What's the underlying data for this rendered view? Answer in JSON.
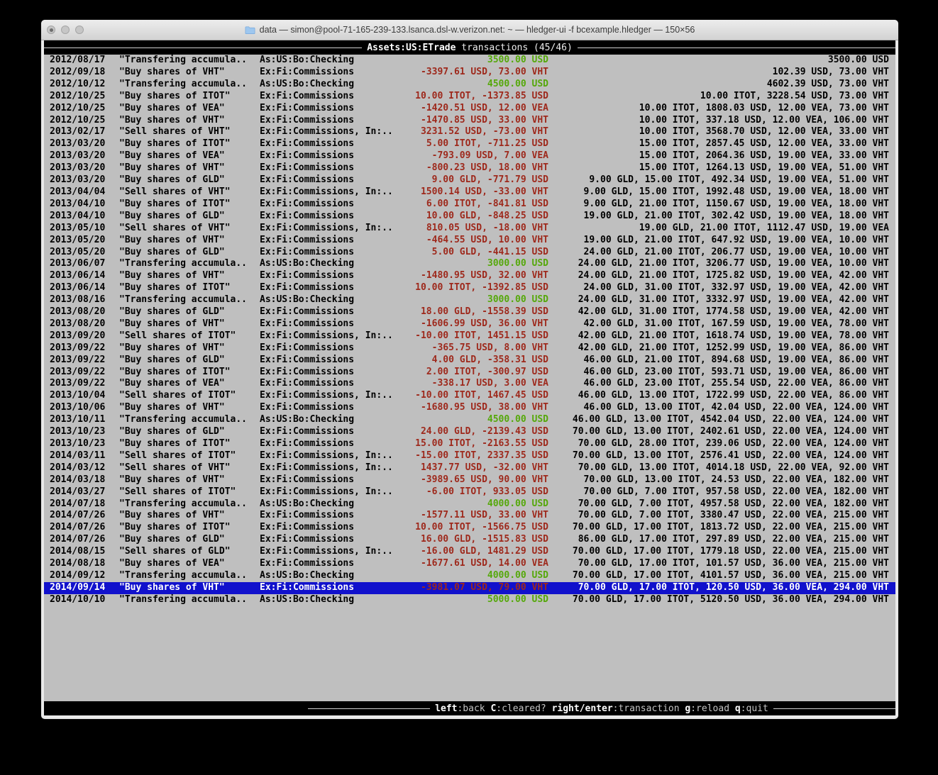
{
  "window": {
    "title": "data — simon@pool-71-165-239-133.lsanca.dsl-w.verizon.net: ~ — hledger-ui -f bcexample.hledger — 150×56",
    "traffic_lights": [
      "close",
      "minimize",
      "zoom"
    ]
  },
  "colors": {
    "terminal_bg": "#bfbfbf",
    "band_bg": "#000000",
    "green": "#55a80a",
    "red": "#9e291c",
    "selection_blue": "#1111cc"
  },
  "header": {
    "account": "Assets:US:ETrade",
    "suffix": " transactions (45/46)"
  },
  "footer": {
    "keys": [
      {
        "key": "left",
        "label": ":back"
      },
      {
        "key": "C",
        "label": ":cleared?"
      },
      {
        "key": "right/enter",
        "label": ":transaction"
      },
      {
        "key": "g",
        "label": ":reload"
      },
      {
        "key": "q",
        "label": ":quit"
      }
    ]
  },
  "transactions": [
    {
      "date": "2012/08/17",
      "desc": "\"Transfering accumula..",
      "account": "As:US:Bo:Checking",
      "amount": "3500.00 USD",
      "amount_color": "g",
      "balance": "3500.00 USD",
      "selected": false
    },
    {
      "date": "2012/09/18",
      "desc": "\"Buy shares of VHT\"",
      "account": "Ex:Fi:Commissions",
      "amount": "-3397.61 USD, 73.00 VHT",
      "amount_color": "r",
      "balance": "102.39 USD, 73.00 VHT",
      "selected": false
    },
    {
      "date": "2012/10/12",
      "desc": "\"Transfering accumula..",
      "account": "As:US:Bo:Checking",
      "amount": "4500.00 USD",
      "amount_color": "g",
      "balance": "4602.39 USD, 73.00 VHT",
      "selected": false
    },
    {
      "date": "2012/10/25",
      "desc": "\"Buy shares of ITOT\"",
      "account": "Ex:Fi:Commissions",
      "amount": "10.00 ITOT, -1373.85 USD",
      "amount_color": "r",
      "balance": "10.00 ITOT, 3228.54 USD, 73.00 VHT",
      "selected": false
    },
    {
      "date": "2012/10/25",
      "desc": "\"Buy shares of VEA\"",
      "account": "Ex:Fi:Commissions",
      "amount": "-1420.51 USD, 12.00 VEA",
      "amount_color": "r",
      "balance": "10.00 ITOT, 1808.03 USD, 12.00 VEA, 73.00 VHT",
      "selected": false
    },
    {
      "date": "2012/10/25",
      "desc": "\"Buy shares of VHT\"",
      "account": "Ex:Fi:Commissions",
      "amount": "-1470.85 USD, 33.00 VHT",
      "amount_color": "r",
      "balance": "10.00 ITOT, 337.18 USD, 12.00 VEA, 106.00 VHT",
      "selected": false
    },
    {
      "date": "2013/02/17",
      "desc": "\"Sell shares of VHT\"",
      "account": "Ex:Fi:Commissions, In:..",
      "amount": "3231.52 USD, -73.00 VHT",
      "amount_color": "r",
      "balance": "10.00 ITOT, 3568.70 USD, 12.00 VEA, 33.00 VHT",
      "selected": false
    },
    {
      "date": "2013/03/20",
      "desc": "\"Buy shares of ITOT\"",
      "account": "Ex:Fi:Commissions",
      "amount": "5.00 ITOT, -711.25 USD",
      "amount_color": "r",
      "balance": "15.00 ITOT, 2857.45 USD, 12.00 VEA, 33.00 VHT",
      "selected": false
    },
    {
      "date": "2013/03/20",
      "desc": "\"Buy shares of VEA\"",
      "account": "Ex:Fi:Commissions",
      "amount": "-793.09 USD, 7.00 VEA",
      "amount_color": "r",
      "balance": "15.00 ITOT, 2064.36 USD, 19.00 VEA, 33.00 VHT",
      "selected": false
    },
    {
      "date": "2013/03/20",
      "desc": "\"Buy shares of VHT\"",
      "account": "Ex:Fi:Commissions",
      "amount": "-800.23 USD, 18.00 VHT",
      "amount_color": "r",
      "balance": "15.00 ITOT, 1264.13 USD, 19.00 VEA, 51.00 VHT",
      "selected": false
    },
    {
      "date": "2013/03/20",
      "desc": "\"Buy shares of GLD\"",
      "account": "Ex:Fi:Commissions",
      "amount": "9.00 GLD, -771.79 USD",
      "amount_color": "r",
      "balance": "9.00 GLD, 15.00 ITOT, 492.34 USD, 19.00 VEA, 51.00 VHT",
      "selected": false
    },
    {
      "date": "2013/04/04",
      "desc": "\"Sell shares of VHT\"",
      "account": "Ex:Fi:Commissions, In:..",
      "amount": "1500.14 USD, -33.00 VHT",
      "amount_color": "r",
      "balance": "9.00 GLD, 15.00 ITOT, 1992.48 USD, 19.00 VEA, 18.00 VHT",
      "selected": false
    },
    {
      "date": "2013/04/10",
      "desc": "\"Buy shares of ITOT\"",
      "account": "Ex:Fi:Commissions",
      "amount": "6.00 ITOT, -841.81 USD",
      "amount_color": "r",
      "balance": "9.00 GLD, 21.00 ITOT, 1150.67 USD, 19.00 VEA, 18.00 VHT",
      "selected": false
    },
    {
      "date": "2013/04/10",
      "desc": "\"Buy shares of GLD\"",
      "account": "Ex:Fi:Commissions",
      "amount": "10.00 GLD, -848.25 USD",
      "amount_color": "r",
      "balance": "19.00 GLD, 21.00 ITOT, 302.42 USD, 19.00 VEA, 18.00 VHT",
      "selected": false
    },
    {
      "date": "2013/05/10",
      "desc": "\"Sell shares of VHT\"",
      "account": "Ex:Fi:Commissions, In:..",
      "amount": "810.05 USD, -18.00 VHT",
      "amount_color": "r",
      "balance": "19.00 GLD, 21.00 ITOT, 1112.47 USD, 19.00 VEA",
      "selected": false
    },
    {
      "date": "2013/05/20",
      "desc": "\"Buy shares of VHT\"",
      "account": "Ex:Fi:Commissions",
      "amount": "-464.55 USD, 10.00 VHT",
      "amount_color": "r",
      "balance": "19.00 GLD, 21.00 ITOT, 647.92 USD, 19.00 VEA, 10.00 VHT",
      "selected": false
    },
    {
      "date": "2013/05/20",
      "desc": "\"Buy shares of GLD\"",
      "account": "Ex:Fi:Commissions",
      "amount": "5.00 GLD, -441.15 USD",
      "amount_color": "r",
      "balance": "24.00 GLD, 21.00 ITOT, 206.77 USD, 19.00 VEA, 10.00 VHT",
      "selected": false
    },
    {
      "date": "2013/06/07",
      "desc": "\"Transfering accumula..",
      "account": "As:US:Bo:Checking",
      "amount": "3000.00 USD",
      "amount_color": "g",
      "balance": "24.00 GLD, 21.00 ITOT, 3206.77 USD, 19.00 VEA, 10.00 VHT",
      "selected": false
    },
    {
      "date": "2013/06/14",
      "desc": "\"Buy shares of VHT\"",
      "account": "Ex:Fi:Commissions",
      "amount": "-1480.95 USD, 32.00 VHT",
      "amount_color": "r",
      "balance": "24.00 GLD, 21.00 ITOT, 1725.82 USD, 19.00 VEA, 42.00 VHT",
      "selected": false
    },
    {
      "date": "2013/06/14",
      "desc": "\"Buy shares of ITOT\"",
      "account": "Ex:Fi:Commissions",
      "amount": "10.00 ITOT, -1392.85 USD",
      "amount_color": "r",
      "balance": "24.00 GLD, 31.00 ITOT, 332.97 USD, 19.00 VEA, 42.00 VHT",
      "selected": false
    },
    {
      "date": "2013/08/16",
      "desc": "\"Transfering accumula..",
      "account": "As:US:Bo:Checking",
      "amount": "3000.00 USD",
      "amount_color": "g",
      "balance": "24.00 GLD, 31.00 ITOT, 3332.97 USD, 19.00 VEA, 42.00 VHT",
      "selected": false
    },
    {
      "date": "2013/08/20",
      "desc": "\"Buy shares of GLD\"",
      "account": "Ex:Fi:Commissions",
      "amount": "18.00 GLD, -1558.39 USD",
      "amount_color": "r",
      "balance": "42.00 GLD, 31.00 ITOT, 1774.58 USD, 19.00 VEA, 42.00 VHT",
      "selected": false
    },
    {
      "date": "2013/08/20",
      "desc": "\"Buy shares of VHT\"",
      "account": "Ex:Fi:Commissions",
      "amount": "-1606.99 USD, 36.00 VHT",
      "amount_color": "r",
      "balance": "42.00 GLD, 31.00 ITOT, 167.59 USD, 19.00 VEA, 78.00 VHT",
      "selected": false
    },
    {
      "date": "2013/09/20",
      "desc": "\"Sell shares of ITOT\"",
      "account": "Ex:Fi:Commissions, In:..",
      "amount": "-10.00 ITOT, 1451.15 USD",
      "amount_color": "r",
      "balance": "42.00 GLD, 21.00 ITOT, 1618.74 USD, 19.00 VEA, 78.00 VHT",
      "selected": false
    },
    {
      "date": "2013/09/22",
      "desc": "\"Buy shares of VHT\"",
      "account": "Ex:Fi:Commissions",
      "amount": "-365.75 USD, 8.00 VHT",
      "amount_color": "r",
      "balance": "42.00 GLD, 21.00 ITOT, 1252.99 USD, 19.00 VEA, 86.00 VHT",
      "selected": false
    },
    {
      "date": "2013/09/22",
      "desc": "\"Buy shares of GLD\"",
      "account": "Ex:Fi:Commissions",
      "amount": "4.00 GLD, -358.31 USD",
      "amount_color": "r",
      "balance": "46.00 GLD, 21.00 ITOT, 894.68 USD, 19.00 VEA, 86.00 VHT",
      "selected": false
    },
    {
      "date": "2013/09/22",
      "desc": "\"Buy shares of ITOT\"",
      "account": "Ex:Fi:Commissions",
      "amount": "2.00 ITOT, -300.97 USD",
      "amount_color": "r",
      "balance": "46.00 GLD, 23.00 ITOT, 593.71 USD, 19.00 VEA, 86.00 VHT",
      "selected": false
    },
    {
      "date": "2013/09/22",
      "desc": "\"Buy shares of VEA\"",
      "account": "Ex:Fi:Commissions",
      "amount": "-338.17 USD, 3.00 VEA",
      "amount_color": "r",
      "balance": "46.00 GLD, 23.00 ITOT, 255.54 USD, 22.00 VEA, 86.00 VHT",
      "selected": false
    },
    {
      "date": "2013/10/04",
      "desc": "\"Sell shares of ITOT\"",
      "account": "Ex:Fi:Commissions, In:..",
      "amount": "-10.00 ITOT, 1467.45 USD",
      "amount_color": "r",
      "balance": "46.00 GLD, 13.00 ITOT, 1722.99 USD, 22.00 VEA, 86.00 VHT",
      "selected": false
    },
    {
      "date": "2013/10/06",
      "desc": "\"Buy shares of VHT\"",
      "account": "Ex:Fi:Commissions",
      "amount": "-1680.95 USD, 38.00 VHT",
      "amount_color": "r",
      "balance": "46.00 GLD, 13.00 ITOT, 42.04 USD, 22.00 VEA, 124.00 VHT",
      "selected": false
    },
    {
      "date": "2013/10/11",
      "desc": "\"Transfering accumula..",
      "account": "As:US:Bo:Checking",
      "amount": "4500.00 USD",
      "amount_color": "g",
      "balance": "46.00 GLD, 13.00 ITOT, 4542.04 USD, 22.00 VEA, 124.00 VHT",
      "selected": false
    },
    {
      "date": "2013/10/23",
      "desc": "\"Buy shares of GLD\"",
      "account": "Ex:Fi:Commissions",
      "amount": "24.00 GLD, -2139.43 USD",
      "amount_color": "r",
      "balance": "70.00 GLD, 13.00 ITOT, 2402.61 USD, 22.00 VEA, 124.00 VHT",
      "selected": false
    },
    {
      "date": "2013/10/23",
      "desc": "\"Buy shares of ITOT\"",
      "account": "Ex:Fi:Commissions",
      "amount": "15.00 ITOT, -2163.55 USD",
      "amount_color": "r",
      "balance": "70.00 GLD, 28.00 ITOT, 239.06 USD, 22.00 VEA, 124.00 VHT",
      "selected": false
    },
    {
      "date": "2014/03/11",
      "desc": "\"Sell shares of ITOT\"",
      "account": "Ex:Fi:Commissions, In:..",
      "amount": "-15.00 ITOT, 2337.35 USD",
      "amount_color": "r",
      "balance": "70.00 GLD, 13.00 ITOT, 2576.41 USD, 22.00 VEA, 124.00 VHT",
      "selected": false
    },
    {
      "date": "2014/03/12",
      "desc": "\"Sell shares of VHT\"",
      "account": "Ex:Fi:Commissions, In:..",
      "amount": "1437.77 USD, -32.00 VHT",
      "amount_color": "r",
      "balance": "70.00 GLD, 13.00 ITOT, 4014.18 USD, 22.00 VEA, 92.00 VHT",
      "selected": false
    },
    {
      "date": "2014/03/18",
      "desc": "\"Buy shares of VHT\"",
      "account": "Ex:Fi:Commissions",
      "amount": "-3989.65 USD, 90.00 VHT",
      "amount_color": "r",
      "balance": "70.00 GLD, 13.00 ITOT, 24.53 USD, 22.00 VEA, 182.00 VHT",
      "selected": false
    },
    {
      "date": "2014/03/27",
      "desc": "\"Sell shares of ITOT\"",
      "account": "Ex:Fi:Commissions, In:..",
      "amount": "-6.00 ITOT, 933.05 USD",
      "amount_color": "r",
      "balance": "70.00 GLD, 7.00 ITOT, 957.58 USD, 22.00 VEA, 182.00 VHT",
      "selected": false
    },
    {
      "date": "2014/07/18",
      "desc": "\"Transfering accumula..",
      "account": "As:US:Bo:Checking",
      "amount": "4000.00 USD",
      "amount_color": "g",
      "balance": "70.00 GLD, 7.00 ITOT, 4957.58 USD, 22.00 VEA, 182.00 VHT",
      "selected": false
    },
    {
      "date": "2014/07/26",
      "desc": "\"Buy shares of VHT\"",
      "account": "Ex:Fi:Commissions",
      "amount": "-1577.11 USD, 33.00 VHT",
      "amount_color": "r",
      "balance": "70.00 GLD, 7.00 ITOT, 3380.47 USD, 22.00 VEA, 215.00 VHT",
      "selected": false
    },
    {
      "date": "2014/07/26",
      "desc": "\"Buy shares of ITOT\"",
      "account": "Ex:Fi:Commissions",
      "amount": "10.00 ITOT, -1566.75 USD",
      "amount_color": "r",
      "balance": "70.00 GLD, 17.00 ITOT, 1813.72 USD, 22.00 VEA, 215.00 VHT",
      "selected": false
    },
    {
      "date": "2014/07/26",
      "desc": "\"Buy shares of GLD\"",
      "account": "Ex:Fi:Commissions",
      "amount": "16.00 GLD, -1515.83 USD",
      "amount_color": "r",
      "balance": "86.00 GLD, 17.00 ITOT, 297.89 USD, 22.00 VEA, 215.00 VHT",
      "selected": false
    },
    {
      "date": "2014/08/15",
      "desc": "\"Sell shares of GLD\"",
      "account": "Ex:Fi:Commissions, In:..",
      "amount": "-16.00 GLD, 1481.29 USD",
      "amount_color": "r",
      "balance": "70.00 GLD, 17.00 ITOT, 1779.18 USD, 22.00 VEA, 215.00 VHT",
      "selected": false
    },
    {
      "date": "2014/08/18",
      "desc": "\"Buy shares of VEA\"",
      "account": "Ex:Fi:Commissions",
      "amount": "-1677.61 USD, 14.00 VEA",
      "amount_color": "r",
      "balance": "70.00 GLD, 17.00 ITOT, 101.57 USD, 36.00 VEA, 215.00 VHT",
      "selected": false
    },
    {
      "date": "2014/09/12",
      "desc": "\"Transfering accumula..",
      "account": "As:US:Bo:Checking",
      "amount": "4000.00 USD",
      "amount_color": "g",
      "balance": "70.00 GLD, 17.00 ITOT, 4101.57 USD, 36.00 VEA, 215.00 VHT",
      "selected": false
    },
    {
      "date": "2014/09/14",
      "desc": "\"Buy shares of VHT\"",
      "account": "Ex:Fi:Commissions",
      "amount": "-3981.07 USD, 79.00 VHT",
      "amount_color": "r",
      "balance": "70.00 GLD, 17.00 ITOT, 120.50 USD, 36.00 VEA, 294.00 VHT",
      "selected": true
    },
    {
      "date": "2014/10/10",
      "desc": "\"Transfering accumula..",
      "account": "As:US:Bo:Checking",
      "amount": "5000.00 USD",
      "amount_color": "g",
      "balance": "70.00 GLD, 17.00 ITOT, 5120.50 USD, 36.00 VEA, 294.00 VHT",
      "selected": false
    }
  ]
}
